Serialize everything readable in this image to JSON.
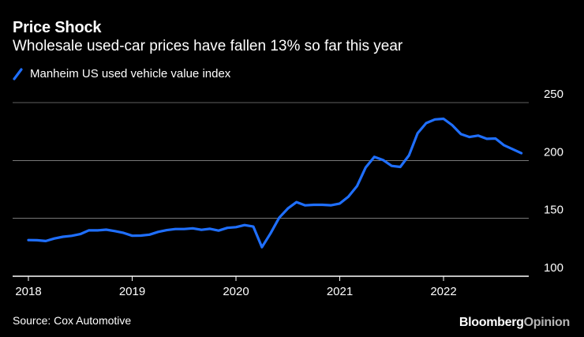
{
  "header": {
    "title": "Price Shock",
    "subtitle": "Wholesale used-car prices have fallen 13% so far this year"
  },
  "footer": {
    "source": "Source: Cox Automotive",
    "brand_part1": "Bloomberg",
    "brand_part2": "Opinion"
  },
  "colors": {
    "background": "#000000",
    "line": "#1f6fff",
    "grid": "#ffffff"
  },
  "chart_data": {
    "type": "line",
    "title": "Price Shock",
    "subtitle": "Wholesale used-car prices have fallen 13% so far this year",
    "xlabel": "",
    "ylabel": "",
    "ylim": [
      100,
      250
    ],
    "yticks": [
      100,
      150,
      200,
      250
    ],
    "xticks": [
      {
        "label": "2018",
        "value": 2018.0
      },
      {
        "label": "2019",
        "value": 2019.0
      },
      {
        "label": "2020",
        "value": 2020.0
      },
      {
        "label": "2021",
        "value": 2021.0
      },
      {
        "label": "2022",
        "value": 2022.0
      }
    ],
    "xlim": [
      2017.9,
      2023.0
    ],
    "grid": true,
    "legend_position": "top-left",
    "series": [
      {
        "name": "Manheim US used vehicle value index",
        "x": [
          2018.0,
          2018.083,
          2018.167,
          2018.25,
          2018.333,
          2018.417,
          2018.5,
          2018.583,
          2018.667,
          2018.75,
          2018.833,
          2018.917,
          2019.0,
          2019.083,
          2019.167,
          2019.25,
          2019.333,
          2019.417,
          2019.5,
          2019.583,
          2019.667,
          2019.75,
          2019.833,
          2019.917,
          2020.0,
          2020.083,
          2020.167,
          2020.25,
          2020.333,
          2020.417,
          2020.5,
          2020.583,
          2020.667,
          2020.75,
          2020.833,
          2020.917,
          2021.0,
          2021.083,
          2021.167,
          2021.25,
          2021.333,
          2021.417,
          2021.5,
          2021.583,
          2021.667,
          2021.75,
          2021.833,
          2021.917,
          2022.0,
          2022.083,
          2022.167,
          2022.25,
          2022.333,
          2022.417,
          2022.5,
          2022.583,
          2022.667,
          2022.75
        ],
        "values": [
          131.2,
          131.1,
          130.4,
          132.6,
          134.1,
          134.9,
          136.4,
          139.7,
          139.6,
          140.2,
          139.0,
          137.4,
          135.0,
          135.1,
          135.9,
          138.3,
          139.8,
          140.8,
          140.8,
          141.4,
          140.1,
          141.0,
          139.4,
          141.8,
          142.4,
          144.2,
          142.9,
          125.1,
          137.0,
          150.6,
          158.6,
          164.0,
          161.2,
          161.7,
          161.7,
          161.3,
          162.8,
          168.7,
          178.0,
          194.0,
          203.1,
          200.4,
          195.3,
          194.4,
          204.4,
          223.5,
          232.3,
          235.5,
          236.0,
          230.6,
          222.8,
          220.3,
          221.5,
          218.7,
          219.0,
          213.1,
          209.7,
          206.3
        ]
      }
    ]
  }
}
